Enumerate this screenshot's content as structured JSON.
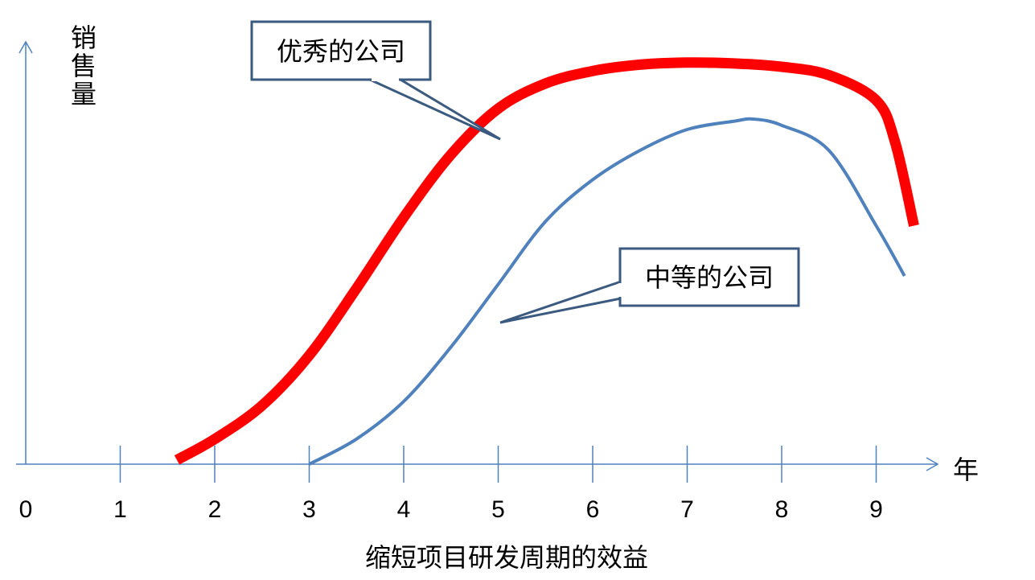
{
  "chart_data": {
    "type": "line",
    "title": "缩短项目研发周期的效益",
    "xlabel": "年",
    "ylabel": "销售量",
    "xlim": [
      0,
      9.4
    ],
    "ticks": [
      "0",
      "1",
      "2",
      "3",
      "4",
      "5",
      "6",
      "7",
      "8",
      "9"
    ],
    "grid": false,
    "series": [
      {
        "name": "优秀的公司",
        "color": "#ff0000",
        "x": [
          1.6,
          2.0,
          2.5,
          3.0,
          3.5,
          4.0,
          4.5,
          5.0,
          5.5,
          6.0,
          6.5,
          7.0,
          7.5,
          8.0,
          8.5,
          9.0,
          9.2,
          9.4
        ],
        "y": [
          0.01,
          0.06,
          0.14,
          0.26,
          0.42,
          0.59,
          0.74,
          0.85,
          0.91,
          0.94,
          0.955,
          0.96,
          0.958,
          0.95,
          0.93,
          0.87,
          0.77,
          0.57
        ]
      },
      {
        "name": "中等的公司",
        "color": "#4f81bd",
        "x": [
          3.0,
          3.5,
          4.0,
          4.5,
          5.0,
          5.5,
          6.0,
          6.5,
          7.0,
          7.5,
          7.7,
          8.0,
          8.5,
          9.0,
          9.3
        ],
        "y": [
          0.0,
          0.06,
          0.15,
          0.28,
          0.43,
          0.58,
          0.68,
          0.75,
          0.8,
          0.82,
          0.825,
          0.81,
          0.75,
          0.57,
          0.45
        ]
      }
    ]
  },
  "colors": {
    "axis": "#4f81bd",
    "callout_border": "#3b5a80"
  }
}
